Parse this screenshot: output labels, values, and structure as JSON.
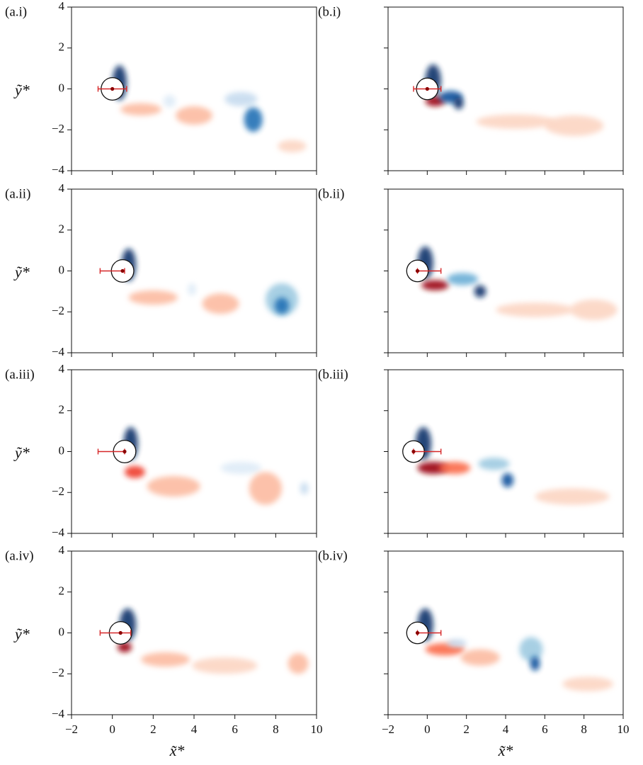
{
  "chart_data": {
    "type": "field",
    "xlabel": "x̃*",
    "ylabel": "ỹ*",
    "xlim": [
      -2,
      10
    ],
    "ylim": [
      -4,
      4
    ],
    "xticks": [
      {
        "value": -2,
        "label": "−2"
      },
      0,
      2,
      4,
      6,
      8,
      10
    ],
    "yticks": [
      {
        "value": -4,
        "label": "−4"
      },
      {
        "value": -2,
        "label": "−2"
      },
      0,
      2,
      4
    ],
    "rod_color": "#d62728",
    "panels": [
      {
        "label": "(a.i)",
        "cylinder_x": 0,
        "rod": [
          -0.7,
          0.7
        ],
        "dot": 0,
        "blobs": [
          [
            0.35,
            0.3,
            0.35,
            0.85,
            "#08306b"
          ],
          [
            1.4,
            -1.0,
            1.0,
            0.3,
            "#fcbba1"
          ],
          [
            4.0,
            -1.3,
            0.9,
            0.45,
            "#fcbba1"
          ],
          [
            2.8,
            -0.6,
            0.3,
            0.3,
            "#deebf7"
          ],
          [
            6.3,
            -0.5,
            0.8,
            0.35,
            "#c6dbef"
          ],
          [
            6.9,
            -1.5,
            0.45,
            0.6,
            "#2171b5"
          ],
          [
            8.8,
            -2.8,
            0.7,
            0.3,
            "#fcd5c3"
          ]
        ]
      },
      {
        "label": "(b.i)",
        "cylinder_x": 0,
        "rod": [
          -0.7,
          0.7
        ],
        "dot": 0,
        "blobs": [
          [
            0.3,
            0.4,
            0.4,
            0.8,
            "#08306b"
          ],
          [
            0.4,
            -0.6,
            0.5,
            0.25,
            "#99000d"
          ],
          [
            1.2,
            -0.4,
            0.6,
            0.3,
            "#08519c"
          ],
          [
            1.6,
            -0.7,
            0.25,
            0.3,
            "#08306b"
          ],
          [
            4.5,
            -1.6,
            2.0,
            0.35,
            "#fcd5c3"
          ],
          [
            7.5,
            -1.8,
            1.5,
            0.5,
            "#fcd5c3"
          ]
        ]
      },
      {
        "label": "(a.ii)",
        "cylinder_x": 0.5,
        "rod": [
          -0.6,
          0.6
        ],
        "dot": 0.5,
        "blobs": [
          [
            0.8,
            0.3,
            0.35,
            0.8,
            "#08306b"
          ],
          [
            2.0,
            -1.3,
            1.2,
            0.35,
            "#fcbba1"
          ],
          [
            3.9,
            -0.9,
            0.2,
            0.3,
            "#deebf7"
          ],
          [
            5.3,
            -1.6,
            0.9,
            0.5,
            "#fcbba1"
          ],
          [
            8.3,
            -1.4,
            0.8,
            0.8,
            "#9ecae1"
          ],
          [
            8.3,
            -1.7,
            0.35,
            0.4,
            "#2171b5"
          ]
        ]
      },
      {
        "label": "(b.ii)",
        "cylinder_x": -0.5,
        "rod": [
          -0.5,
          0.7
        ],
        "dot": -0.5,
        "blobs": [
          [
            -0.1,
            0.4,
            0.4,
            0.8,
            "#08306b"
          ],
          [
            0.4,
            -0.7,
            0.7,
            0.25,
            "#99000d"
          ],
          [
            1.8,
            -0.4,
            0.8,
            0.3,
            "#6baed6"
          ],
          [
            2.7,
            -1.0,
            0.3,
            0.3,
            "#08306b"
          ],
          [
            5.5,
            -1.9,
            2.0,
            0.35,
            "#fcd5c3"
          ],
          [
            8.5,
            -1.9,
            1.2,
            0.5,
            "#fcd5c3"
          ]
        ]
      },
      {
        "label": "(a.iii)",
        "cylinder_x": 0.6,
        "rod": [
          -0.7,
          0.6
        ],
        "dot": 0.6,
        "blobs": [
          [
            0.9,
            0.4,
            0.35,
            0.8,
            "#08306b"
          ],
          [
            1.1,
            -1.0,
            0.5,
            0.3,
            "#ef3b2c"
          ],
          [
            3.0,
            -1.7,
            1.3,
            0.5,
            "#fcbba1"
          ],
          [
            6.3,
            -0.8,
            1.0,
            0.3,
            "#deebf7"
          ],
          [
            7.5,
            -1.8,
            0.8,
            0.8,
            "#fcbba1"
          ],
          [
            9.4,
            -1.8,
            0.2,
            0.3,
            "#c6dbef"
          ]
        ]
      },
      {
        "label": "(b.iii)",
        "cylinder_x": -0.7,
        "rod": [
          -0.7,
          0.7
        ],
        "dot": -0.7,
        "blobs": [
          [
            -0.2,
            0.4,
            0.4,
            0.8,
            "#08306b"
          ],
          [
            0.3,
            -0.8,
            0.8,
            0.3,
            "#99000d"
          ],
          [
            1.4,
            -0.8,
            0.8,
            0.3,
            "#fb6a4a"
          ],
          [
            3.4,
            -0.6,
            0.8,
            0.3,
            "#9ecae1"
          ],
          [
            4.1,
            -1.4,
            0.3,
            0.35,
            "#08519c"
          ],
          [
            7.4,
            -2.2,
            1.9,
            0.4,
            "#fcd5c3"
          ]
        ]
      },
      {
        "label": "(a.iv)",
        "cylinder_x": 0.4,
        "rod": [
          -0.6,
          0.9
        ],
        "dot": 0.4,
        "blobs": [
          [
            0.75,
            0.4,
            0.4,
            0.8,
            "#08306b"
          ],
          [
            0.6,
            -0.7,
            0.35,
            0.25,
            "#99000d"
          ],
          [
            2.6,
            -1.3,
            1.2,
            0.35,
            "#fcbba1"
          ],
          [
            5.5,
            -1.6,
            1.6,
            0.4,
            "#fcd5c3"
          ],
          [
            9.1,
            -1.5,
            0.5,
            0.5,
            "#fcbba1"
          ]
        ]
      },
      {
        "label": "(b.iv)",
        "cylinder_x": -0.5,
        "rod": [
          -0.5,
          0.7
        ],
        "dot": -0.5,
        "blobs": [
          [
            -0.1,
            0.4,
            0.4,
            0.8,
            "#08306b"
          ],
          [
            0.9,
            -0.8,
            1.0,
            0.3,
            "#fb6a4a"
          ],
          [
            2.7,
            -1.2,
            1.0,
            0.4,
            "#fcbba1"
          ],
          [
            1.5,
            -0.5,
            0.5,
            0.2,
            "#c6dbef"
          ],
          [
            5.3,
            -0.8,
            0.6,
            0.6,
            "#9ecae1"
          ],
          [
            5.5,
            -1.5,
            0.25,
            0.35,
            "#08519c"
          ],
          [
            8.2,
            -2.5,
            1.3,
            0.35,
            "#fcd5c3"
          ]
        ]
      }
    ]
  }
}
